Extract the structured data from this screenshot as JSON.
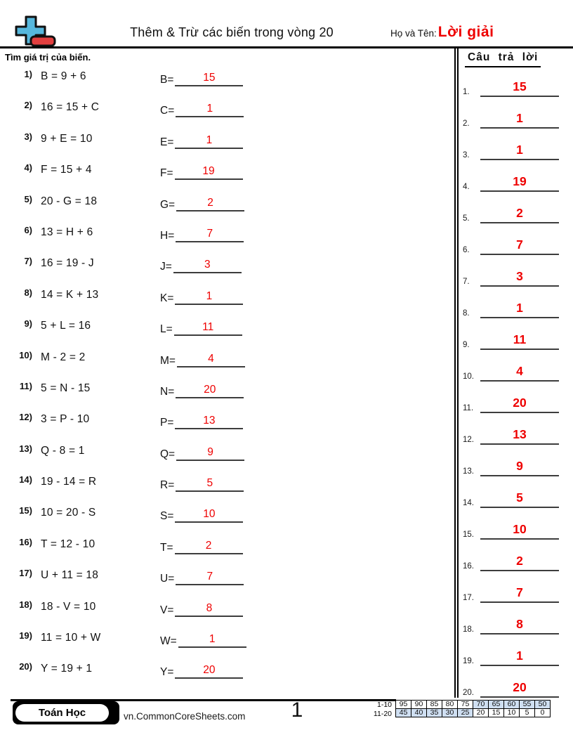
{
  "header": {
    "title": "Thêm & Trừ các biến trong vòng 20",
    "name_label": "Họ và Tên:",
    "name_value": "Lời giải"
  },
  "instructions": "Tìm giá trị của biến.",
  "problems": [
    {
      "num": "1)",
      "equation": "B = 9 + 6",
      "var": "B=",
      "answer": "15"
    },
    {
      "num": "2)",
      "equation": "16 = 15 + C",
      "var": "C=",
      "answer": "1"
    },
    {
      "num": "3)",
      "equation": "9 + E = 10",
      "var": "E=",
      "answer": "1"
    },
    {
      "num": "4)",
      "equation": "F = 15 + 4",
      "var": "F=",
      "answer": "19"
    },
    {
      "num": "5)",
      "equation": "20 - G = 18",
      "var": "G=",
      "answer": "2"
    },
    {
      "num": "6)",
      "equation": "13 = H + 6",
      "var": "H=",
      "answer": "7"
    },
    {
      "num": "7)",
      "equation": "16 = 19 - J",
      "var": "J=",
      "answer": "3"
    },
    {
      "num": "8)",
      "equation": "14 = K + 13",
      "var": "K=",
      "answer": "1"
    },
    {
      "num": "9)",
      "equation": "5 + L = 16",
      "var": "L=",
      "answer": "11"
    },
    {
      "num": "10)",
      "equation": "M - 2 = 2",
      "var": "M=",
      "answer": "4"
    },
    {
      "num": "11)",
      "equation": "5 = N - 15",
      "var": "N=",
      "answer": "20"
    },
    {
      "num": "12)",
      "equation": "3 = P - 10",
      "var": "P=",
      "answer": "13"
    },
    {
      "num": "13)",
      "equation": "Q - 8 = 1",
      "var": "Q=",
      "answer": "9"
    },
    {
      "num": "14)",
      "equation": "19 - 14 = R",
      "var": "R=",
      "answer": "5"
    },
    {
      "num": "15)",
      "equation": "10 = 20 - S",
      "var": "S=",
      "answer": "10"
    },
    {
      "num": "16)",
      "equation": "T = 12 - 10",
      "var": "T=",
      "answer": "2"
    },
    {
      "num": "17)",
      "equation": "U + 11 = 18",
      "var": "U=",
      "answer": "7"
    },
    {
      "num": "18)",
      "equation": "18 - V = 10",
      "var": "V=",
      "answer": "8"
    },
    {
      "num": "19)",
      "equation": "11 = 10 + W",
      "var": "W=",
      "answer": "1"
    },
    {
      "num": "20)",
      "equation": "Y = 19 + 1",
      "var": "Y=",
      "answer": "20"
    }
  ],
  "answers_panel": {
    "title": "Câu trả lời",
    "items": [
      {
        "num": "1.",
        "answer": "15"
      },
      {
        "num": "2.",
        "answer": "1"
      },
      {
        "num": "3.",
        "answer": "1"
      },
      {
        "num": "4.",
        "answer": "19"
      },
      {
        "num": "5.",
        "answer": "2"
      },
      {
        "num": "6.",
        "answer": "7"
      },
      {
        "num": "7.",
        "answer": "3"
      },
      {
        "num": "8.",
        "answer": "1"
      },
      {
        "num": "9.",
        "answer": "11"
      },
      {
        "num": "10.",
        "answer": "4"
      },
      {
        "num": "11.",
        "answer": "20"
      },
      {
        "num": "12.",
        "answer": "13"
      },
      {
        "num": "13.",
        "answer": "9"
      },
      {
        "num": "14.",
        "answer": "5"
      },
      {
        "num": "15.",
        "answer": "10"
      },
      {
        "num": "16.",
        "answer": "2"
      },
      {
        "num": "17.",
        "answer": "7"
      },
      {
        "num": "18.",
        "answer": "8"
      },
      {
        "num": "19.",
        "answer": "1"
      },
      {
        "num": "20.",
        "answer": "20"
      }
    ]
  },
  "footer": {
    "badge": "Toán Học",
    "site": "vn.CommonCoreSheets.com",
    "page": "1",
    "score_rows": [
      {
        "label": "1-10",
        "cells": [
          {
            "v": "95",
            "hl": false
          },
          {
            "v": "90",
            "hl": false
          },
          {
            "v": "85",
            "hl": false
          },
          {
            "v": "80",
            "hl": false
          },
          {
            "v": "75",
            "hl": false
          },
          {
            "v": "70",
            "hl": true
          },
          {
            "v": "65",
            "hl": true
          },
          {
            "v": "60",
            "hl": true
          },
          {
            "v": "55",
            "hl": true
          },
          {
            "v": "50",
            "hl": true
          }
        ]
      },
      {
        "label": "11-20",
        "cells": [
          {
            "v": "45",
            "hl": true
          },
          {
            "v": "40",
            "hl": true
          },
          {
            "v": "35",
            "hl": true
          },
          {
            "v": "30",
            "hl": true
          },
          {
            "v": "25",
            "hl": true
          },
          {
            "v": "20",
            "hl": false
          },
          {
            "v": "15",
            "hl": false
          },
          {
            "v": "10",
            "hl": false
          },
          {
            "v": "5",
            "hl": false
          },
          {
            "v": "0",
            "hl": false
          }
        ]
      }
    ]
  },
  "colors": {
    "answer_red": "#ee0000",
    "logo_plus_blue": "#56b7dc",
    "logo_minus_red": "#e23f3f",
    "grid_highlight": "#cfdff2"
  }
}
